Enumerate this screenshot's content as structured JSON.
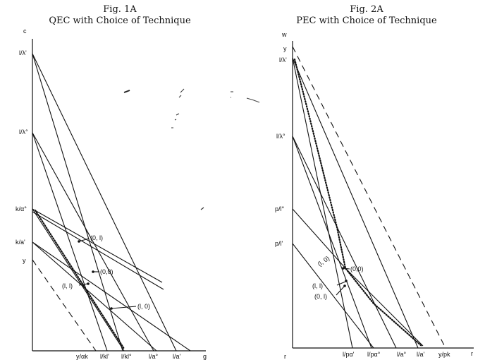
{
  "fig1": {
    "title_line1": "Fig. 1A",
    "title_line2": "QEC with Choice of Technique",
    "y_axis": "c",
    "x_axis": "g",
    "y_labels": {
      "l_lambda1": "l/λ'",
      "l_lambda0": "l/λ°",
      "k_alpha0": "k/α°",
      "k_alpha1": "k/a'",
      "y": "y"
    },
    "x_labels": {
      "v_ak": "y/αk",
      "l_kl1": "l/kl'",
      "l_kl0": "l/kl°",
      "l_a0": "l/a°",
      "l_a1": "l/a'"
    },
    "points": {
      "p01": "(0, l)",
      "p00": "(0,0)",
      "p11": "(l, l)",
      "p10": "(l, 0)"
    }
  },
  "fig2": {
    "title_line1": "Fig. 2A",
    "title_line2": "PEC with Choice of Technique",
    "y_axis": "w",
    "x_axis": "r",
    "origin": "r",
    "y_labels": {
      "y": "y",
      "l_lambda1": "l/λ'",
      "l_lambda0": "l/λ°",
      "p_l0": "p/l°",
      "p_l1": "p/l'"
    },
    "x_labels": {
      "l_pa1": "l/pα'",
      "l_pa0": "l/pα°",
      "l_a0": "l/a°",
      "l_a1": "l/a'",
      "y_pk": "y/pk"
    },
    "points": {
      "p10": "(l, 0)",
      "p00": "(0,0)",
      "p11": "(l, l)",
      "p01": "(0, l)"
    }
  }
}
